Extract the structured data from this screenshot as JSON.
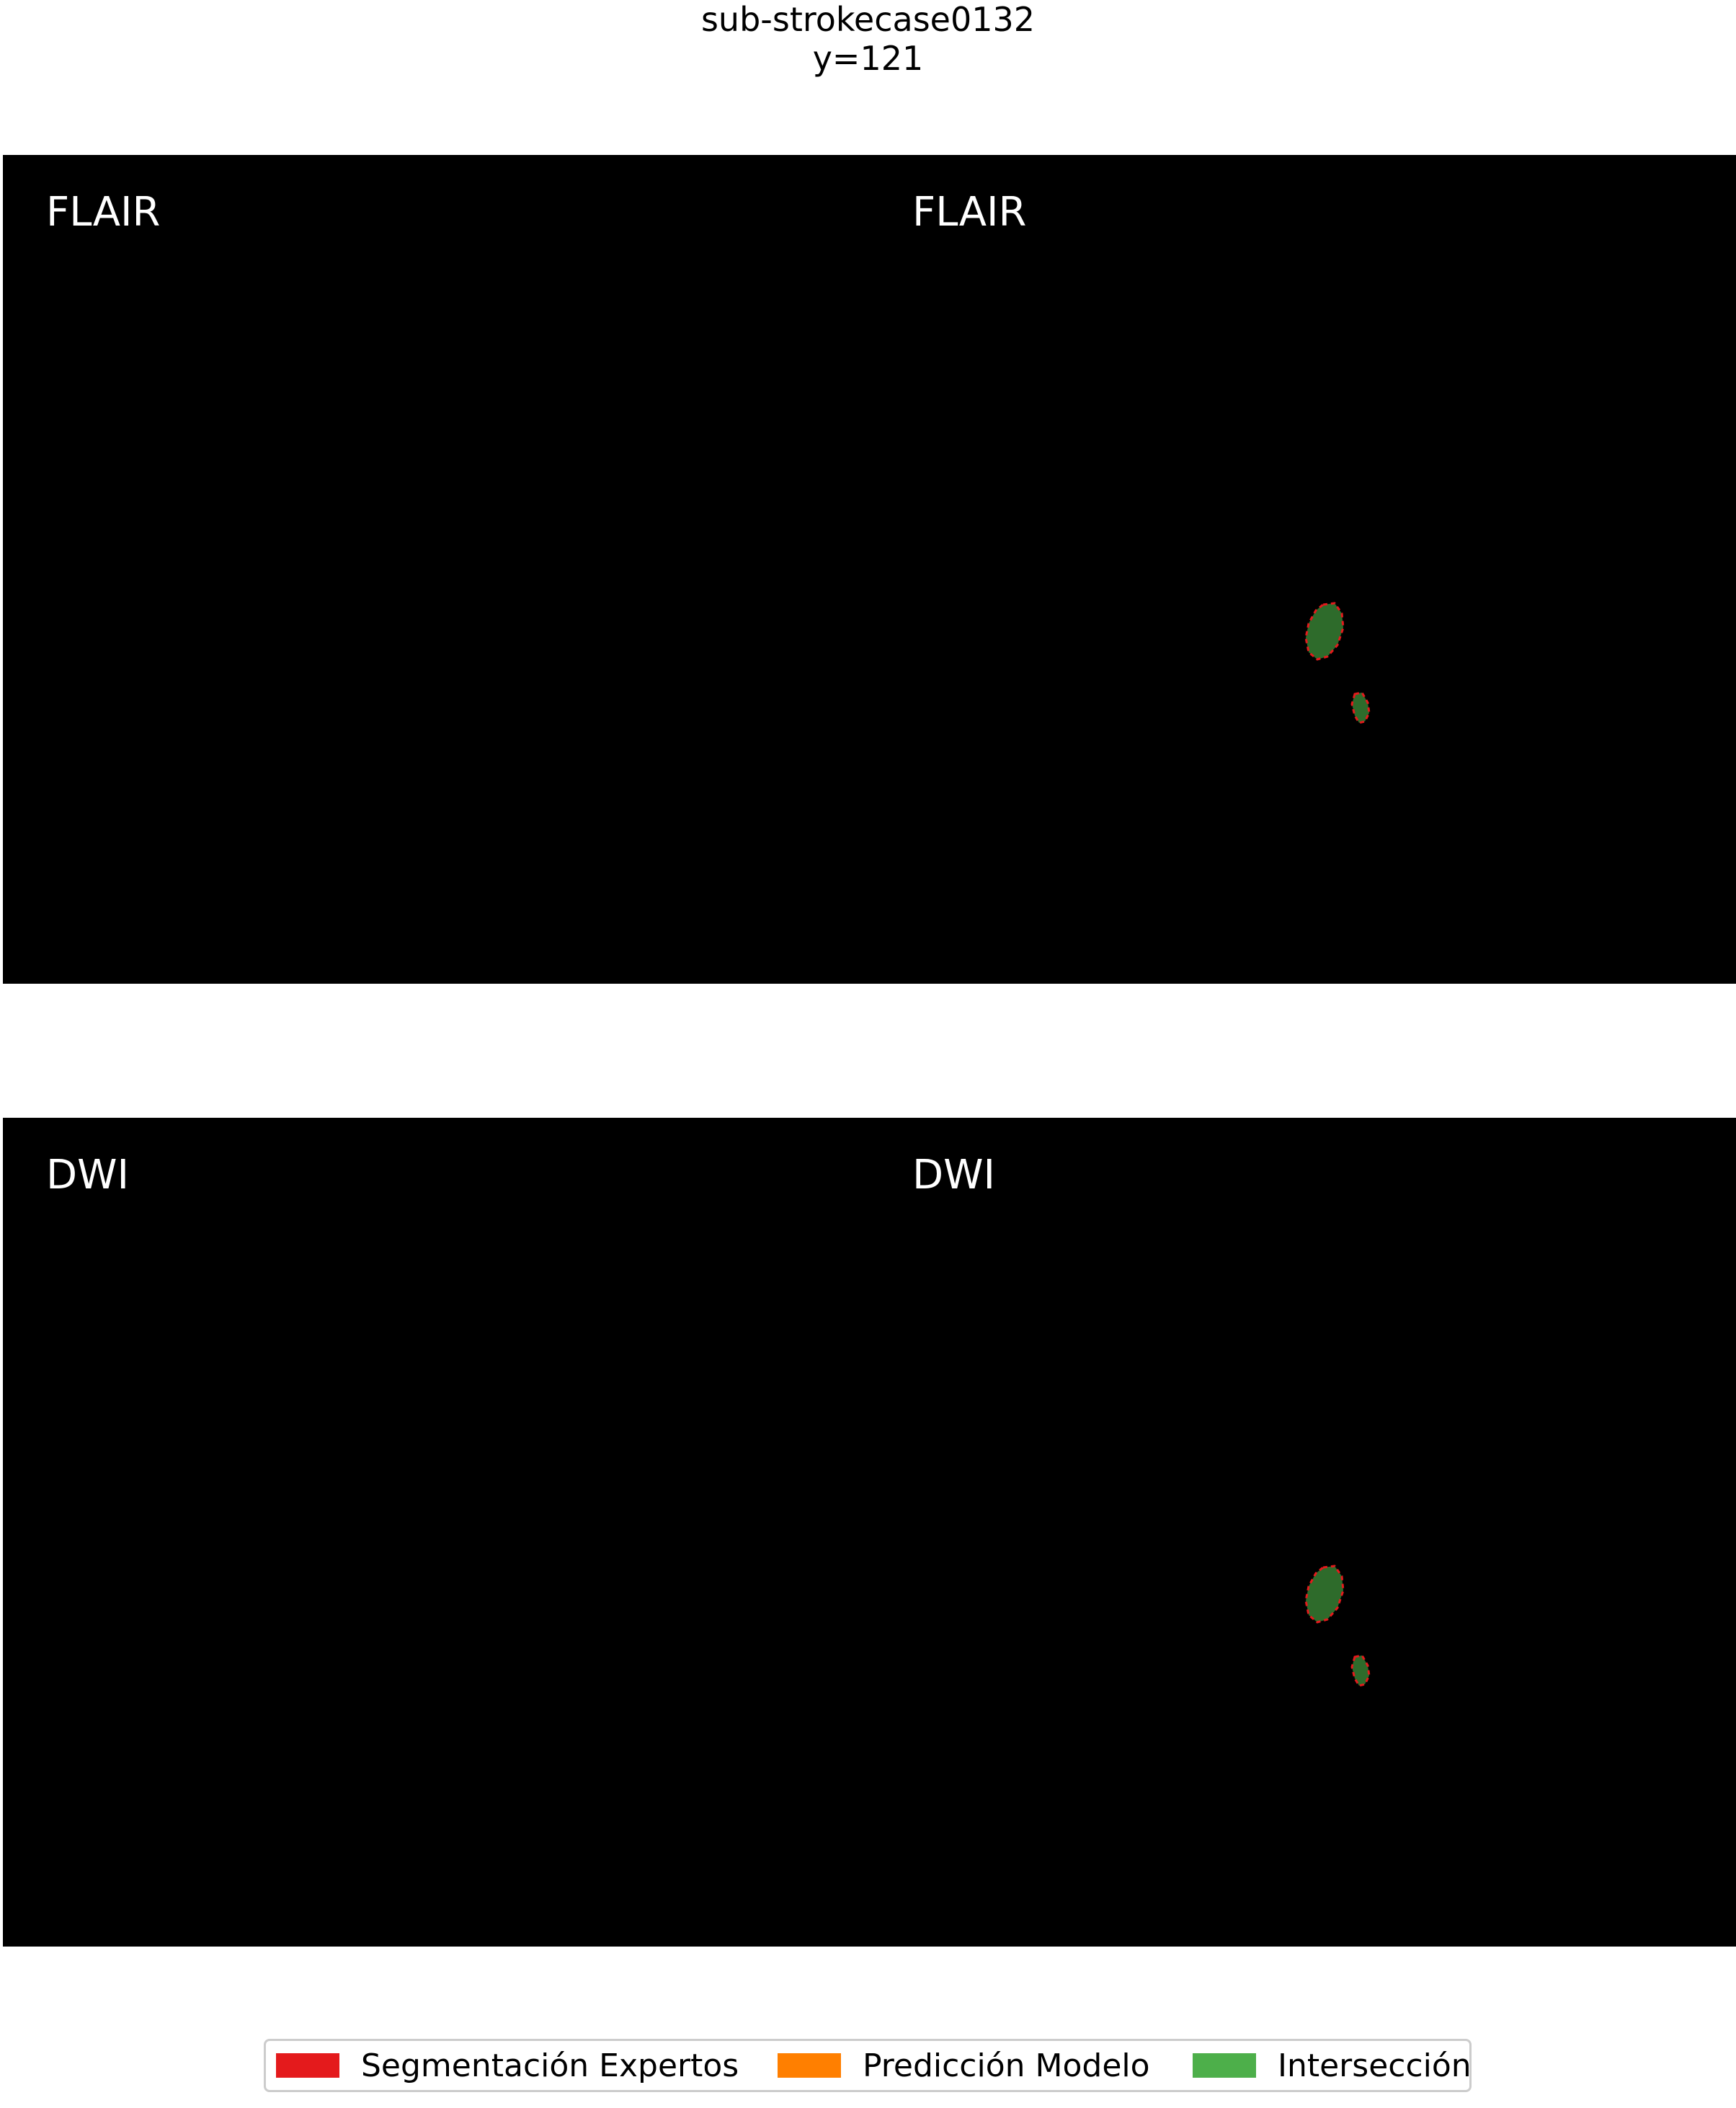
{
  "figure": {
    "title_line1": "sub-strokecase0132",
    "title_line2": "y=121"
  },
  "panels": [
    {
      "label": "FLAIR"
    },
    {
      "label": "FLAIR"
    },
    {
      "label": "DWI"
    },
    {
      "label": "DWI"
    }
  ],
  "legend": {
    "items": [
      {
        "label": "Segmentación Expertos",
        "color": "#e41a1c"
      },
      {
        "label": "Predicción Modelo",
        "color": "#ff7f00"
      },
      {
        "label": "Intersección",
        "color": "#4daf4a"
      }
    ]
  },
  "colors": {
    "background_image": "#000000",
    "lesion_fill": "#2e6b2b",
    "lesion_border": "#e41a1c"
  }
}
